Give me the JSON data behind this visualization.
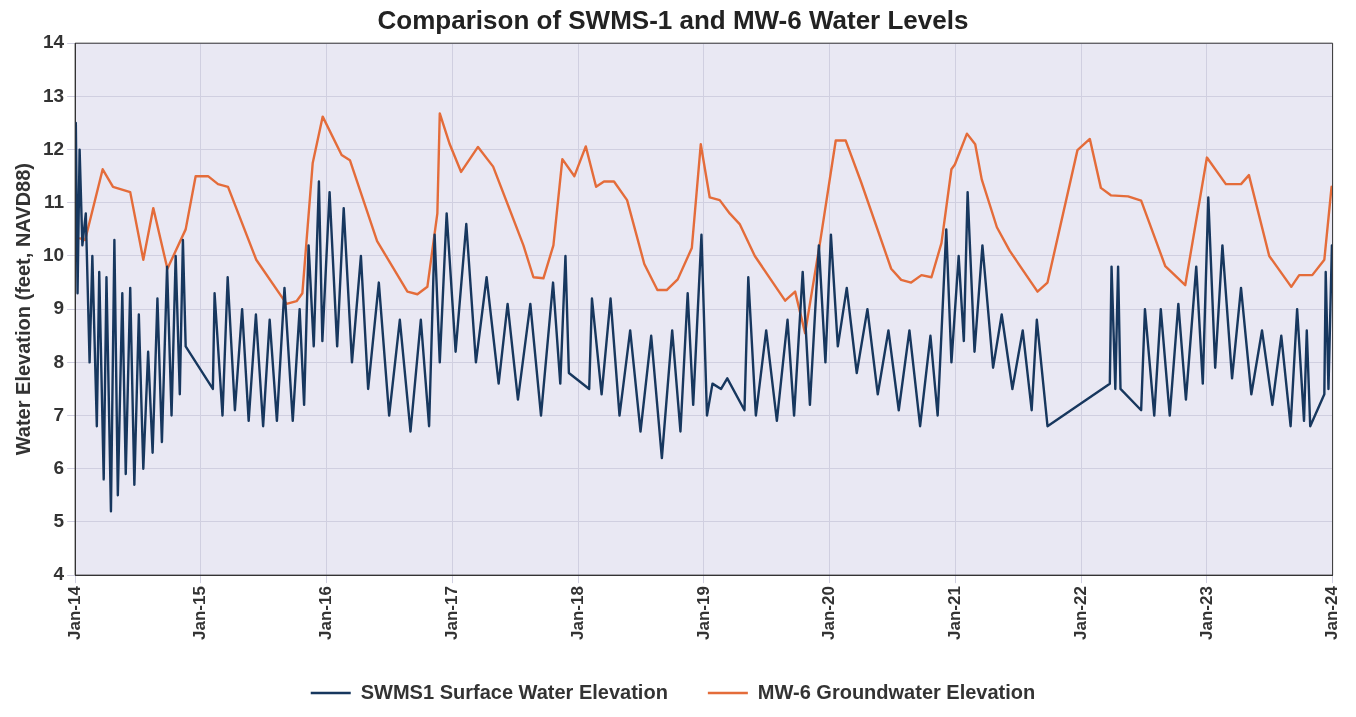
{
  "chart_data": {
    "type": "line",
    "title": "Comparison of SWMS-1 and MW-6 Water Levels",
    "ylabel": "Water Elevation (feet, NAVD88)",
    "xlim": [
      "2014-01",
      "2024-01"
    ],
    "xticks": [
      {
        "value": "2014-01",
        "label": "Jan-14"
      },
      {
        "value": "2015-01",
        "label": "Jan-15"
      },
      {
        "value": "2016-01",
        "label": "Jan-16"
      },
      {
        "value": "2017-01",
        "label": "Jan-17"
      },
      {
        "value": "2018-01",
        "label": "Jan-18"
      },
      {
        "value": "2019-01",
        "label": "Jan-19"
      },
      {
        "value": "2020-01",
        "label": "Jan-20"
      },
      {
        "value": "2021-01",
        "label": "Jan-21"
      },
      {
        "value": "2022-01",
        "label": "Jan-22"
      },
      {
        "value": "2023-01",
        "label": "Jan-23"
      },
      {
        "value": "2024-01",
        "label": "Jan-24"
      }
    ],
    "ylim": [
      4,
      14
    ],
    "yticks": [
      4,
      5,
      6,
      7,
      8,
      9,
      10,
      11,
      12,
      13,
      14
    ],
    "grid": true,
    "legend": "bottom",
    "marker": "none",
    "line_style": "solid",
    "series": [
      {
        "name": "SWMS1 Surface Water Elevation",
        "color": "#17375e",
        "x": [
          "2014-01-03",
          "2014-01-08",
          "2014-01-14",
          "2014-01-22",
          "2014-02-01",
          "2014-02-12",
          "2014-02-20",
          "2014-03-05",
          "2014-03-12",
          "2014-03-25",
          "2014-04-02",
          "2014-04-15",
          "2014-04-25",
          "2014-05-05",
          "2014-05-18",
          "2014-05-28",
          "2014-06-10",
          "2014-06-22",
          "2014-07-05",
          "2014-07-18",
          "2014-08-01",
          "2014-08-14",
          "2014-08-28",
          "2014-09-10",
          "2014-09-25",
          "2014-10-08",
          "2014-10-20",
          "2014-11-01",
          "2014-11-10",
          "2014-11-18",
          "2015-02-05",
          "2015-02-10",
          "2015-03-05",
          "2015-03-20",
          "2015-04-10",
          "2015-05-01",
          "2015-05-20",
          "2015-06-10",
          "2015-07-01",
          "2015-07-20",
          "2015-08-10",
          "2015-09-01",
          "2015-09-25",
          "2015-10-15",
          "2015-10-28",
          "2015-11-10",
          "2015-11-25",
          "2015-12-10",
          "2015-12-20",
          "2016-01-10",
          "2016-02-01",
          "2016-02-20",
          "2016-03-15",
          "2016-04-10",
          "2016-05-01",
          "2016-06-01",
          "2016-07-01",
          "2016-08-01",
          "2016-09-01",
          "2016-10-01",
          "2016-10-25",
          "2016-11-10",
          "2016-11-25",
          "2016-12-15",
          "2017-01-10",
          "2017-02-10",
          "2017-03-10",
          "2017-04-10",
          "2017-05-15",
          "2017-06-10",
          "2017-07-10",
          "2017-08-15",
          "2017-09-15",
          "2017-10-20",
          "2017-11-10",
          "2017-11-25",
          "2017-12-05",
          "2018-02-02",
          "2018-02-10",
          "2018-03-10",
          "2018-04-05",
          "2018-05-01",
          "2018-06-01",
          "2018-07-01",
          "2018-08-01",
          "2018-09-01",
          "2018-10-01",
          "2018-10-25",
          "2018-11-15",
          "2018-12-01",
          "2018-12-25",
          "2019-01-10",
          "2019-01-26",
          "2019-02-20",
          "2019-03-10",
          "2019-04-29",
          "2019-05-10",
          "2019-06-01",
          "2019-07-01",
          "2019-08-01",
          "2019-09-01",
          "2019-09-20",
          "2019-10-15",
          "2019-11-05",
          "2019-12-01",
          "2019-12-20",
          "2020-01-05",
          "2020-01-25",
          "2020-02-20",
          "2020-03-20",
          "2020-04-20",
          "2020-05-20",
          "2020-06-20",
          "2020-07-20",
          "2020-08-20",
          "2020-09-20",
          "2020-10-20",
          "2020-11-10",
          "2020-12-05",
          "2020-12-20",
          "2021-01-10",
          "2021-01-25",
          "2021-02-05",
          "2021-02-25",
          "2021-03-20",
          "2021-04-20",
          "2021-05-15",
          "2021-06-15",
          "2021-07-15",
          "2021-08-10",
          "2021-08-25",
          "2021-09-25",
          "2022-03-25",
          "2022-03-30",
          "2022-04-10",
          "2022-04-18",
          "2022-04-25",
          "2022-06-24",
          "2022-07-05",
          "2022-08-01",
          "2022-08-20",
          "2022-09-15",
          "2022-10-10",
          "2022-11-01",
          "2022-12-01",
          "2022-12-20",
          "2023-01-05",
          "2023-01-25",
          "2023-02-15",
          "2023-03-15",
          "2023-04-10",
          "2023-05-10",
          "2023-06-10",
          "2023-07-10",
          "2023-08-05",
          "2023-09-01",
          "2023-09-20",
          "2023-10-10",
          "2023-10-18",
          "2023-10-28",
          "2023-12-08",
          "2023-12-12",
          "2023-12-20",
          "2023-12-30"
        ],
        "values": [
          12.5,
          9.3,
          12.0,
          10.2,
          10.8,
          8.0,
          10.0,
          6.8,
          9.7,
          5.8,
          9.6,
          5.2,
          10.3,
          5.5,
          9.3,
          5.9,
          9.4,
          5.7,
          8.9,
          6.0,
          8.2,
          6.3,
          9.2,
          6.5,
          9.8,
          7.0,
          10.0,
          7.4,
          10.3,
          8.3,
          7.5,
          9.3,
          7.0,
          9.6,
          7.1,
          9.0,
          6.9,
          8.9,
          6.8,
          8.8,
          6.9,
          9.4,
          6.9,
          9.0,
          7.2,
          10.2,
          8.3,
          11.4,
          8.4,
          11.2,
          8.3,
          10.9,
          8.0,
          10.0,
          7.5,
          9.5,
          7.0,
          8.8,
          6.7,
          8.8,
          6.8,
          10.4,
          8.0,
          10.8,
          8.2,
          10.6,
          8.0,
          9.6,
          7.6,
          9.1,
          7.3,
          9.1,
          7.0,
          9.5,
          7.6,
          10.0,
          7.8,
          7.5,
          9.2,
          7.4,
          9.2,
          7.0,
          8.6,
          6.7,
          8.5,
          6.2,
          8.6,
          6.7,
          9.3,
          7.2,
          10.4,
          7.0,
          7.6,
          7.5,
          7.7,
          7.1,
          9.6,
          7.0,
          8.6,
          6.9,
          8.8,
          7.0,
          9.7,
          7.2,
          10.2,
          8.0,
          10.4,
          8.3,
          9.4,
          7.8,
          9.0,
          7.4,
          8.6,
          7.1,
          8.6,
          6.8,
          8.5,
          7.0,
          10.5,
          8.0,
          10.0,
          8.4,
          11.2,
          8.2,
          10.2,
          7.9,
          8.9,
          7.5,
          8.6,
          7.1,
          8.8,
          6.8,
          7.6,
          9.8,
          7.5,
          9.8,
          7.5,
          7.1,
          9.0,
          7.0,
          9.0,
          7.0,
          9.1,
          7.3,
          9.8,
          7.6,
          11.1,
          7.9,
          10.2,
          7.7,
          9.4,
          7.4,
          8.6,
          7.2,
          8.5,
          6.8,
          9.0,
          6.9,
          8.6,
          6.8,
          7.4,
          9.7,
          7.5,
          10.2
        ]
      },
      {
        "name": "MW-6 Groundwater Elevation",
        "color": "#e46c3a",
        "x": [
          "2014-01-15",
          "2014-01-30",
          "2014-03-22",
          "2014-04-21",
          "2014-06-10",
          "2014-07-18",
          "2014-08-16",
          "2014-09-26",
          "2014-11-18",
          "2014-12-17",
          "2015-01-22",
          "2015-02-20",
          "2015-03-21",
          "2015-06-11",
          "2015-09-07",
          "2015-10-06",
          "2015-10-23",
          "2015-11-22",
          "2015-12-21",
          "2016-02-14",
          "2016-03-09",
          "2016-05-27",
          "2016-08-23",
          "2016-09-21",
          "2016-10-20",
          "2016-11-18",
          "2016-11-25",
          "2016-12-24",
          "2017-01-26",
          "2017-03-16",
          "2017-04-29",
          "2017-07-26",
          "2017-08-24",
          "2017-09-22",
          "2017-10-21",
          "2017-11-16",
          "2017-12-21",
          "2018-01-23",
          "2018-02-22",
          "2018-03-17",
          "2018-04-15",
          "2018-05-23",
          "2018-07-12",
          "2018-08-19",
          "2018-09-15",
          "2018-10-17",
          "2018-11-27",
          "2018-12-23",
          "2019-01-18",
          "2019-02-16",
          "2019-03-17",
          "2019-04-15",
          "2019-05-29",
          "2019-08-25",
          "2019-09-23",
          "2019-10-22",
          "2019-12-05",
          "2020-01-19",
          "2020-02-17",
          "2020-04-01",
          "2020-06-28",
          "2020-07-27",
          "2020-08-25",
          "2020-09-24",
          "2020-10-23",
          "2020-11-21",
          "2020-12-20",
          "2020-12-30",
          "2021-02-03",
          "2021-02-27",
          "2021-03-18",
          "2021-05-01",
          "2021-06-07",
          "2021-08-27",
          "2021-09-25",
          "2021-12-21",
          "2022-01-26",
          "2022-02-27",
          "2022-03-28",
          "2022-05-17",
          "2022-06-24",
          "2022-09-02",
          "2022-10-30",
          "2023-01-01",
          "2023-02-25",
          "2023-04-10",
          "2023-05-03",
          "2023-07-01",
          "2023-09-03",
          "2023-09-26",
          "2023-11-03",
          "2023-12-08",
          "2023-12-29"
        ],
        "values": [
          10.33,
          10.3,
          11.63,
          11.3,
          11.2,
          9.93,
          10.9,
          9.76,
          10.5,
          11.5,
          11.5,
          11.35,
          11.3,
          9.93,
          9.1,
          9.15,
          9.3,
          11.75,
          12.62,
          11.9,
          11.8,
          10.28,
          9.33,
          9.28,
          9.42,
          10.8,
          12.68,
          12.1,
          11.58,
          12.05,
          11.68,
          10.2,
          9.6,
          9.58,
          10.2,
          11.82,
          11.5,
          12.06,
          11.3,
          11.4,
          11.4,
          11.05,
          9.85,
          9.36,
          9.36,
          9.56,
          10.15,
          12.1,
          11.1,
          11.05,
          10.8,
          10.6,
          10.0,
          9.16,
          9.33,
          8.55,
          10.28,
          12.17,
          12.17,
          11.4,
          9.76,
          9.55,
          9.5,
          9.64,
          9.6,
          10.24,
          11.63,
          11.72,
          12.3,
          12.1,
          11.44,
          10.54,
          10.1,
          9.33,
          9.5,
          11.99,
          12.2,
          11.28,
          11.14,
          11.12,
          11.04,
          9.81,
          9.45,
          11.85,
          11.35,
          11.35,
          11.52,
          10.0,
          9.42,
          9.64,
          9.64,
          9.93,
          11.3
        ]
      }
    ]
  }
}
